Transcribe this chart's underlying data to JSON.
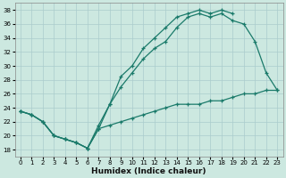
{
  "title": "",
  "xlabel": "Humidex (Indice chaleur)",
  "xlim": [
    -0.5,
    23.5
  ],
  "ylim": [
    17,
    39
  ],
  "yticks": [
    18,
    20,
    22,
    24,
    26,
    28,
    30,
    32,
    34,
    36,
    38
  ],
  "xticks": [
    0,
    1,
    2,
    3,
    4,
    5,
    6,
    7,
    8,
    9,
    10,
    11,
    12,
    13,
    14,
    15,
    16,
    17,
    18,
    19,
    20,
    21,
    22,
    23
  ],
  "background_color": "#cce8e0",
  "grid_color": "#aacccc",
  "line_color": "#1a7a6a",
  "series": {
    "line_upper": [
      23.5,
      23.0,
      22.0,
      20.0,
      19.5,
      19.0,
      18.2,
      21.5,
      24.5,
      28.5,
      30.0,
      32.5,
      34.0,
      35.5,
      37.0,
      37.5,
      38.0,
      37.5,
      38.0,
      37.5,
      null,
      null,
      null,
      null
    ],
    "line_mid": [
      23.5,
      23.0,
      22.0,
      20.0,
      19.5,
      19.0,
      18.2,
      21.0,
      24.5,
      27.0,
      29.0,
      31.0,
      32.5,
      33.5,
      35.5,
      37.0,
      37.5,
      37.0,
      37.5,
      36.5,
      36.0,
      33.5,
      29.0,
      26.5
    ],
    "line_lower": [
      23.5,
      23.0,
      22.0,
      20.0,
      19.5,
      19.0,
      18.2,
      21.0,
      21.5,
      22.0,
      22.5,
      23.0,
      23.5,
      24.0,
      24.5,
      24.5,
      24.5,
      25.0,
      25.0,
      25.5,
      26.0,
      26.0,
      26.5,
      26.5
    ]
  }
}
